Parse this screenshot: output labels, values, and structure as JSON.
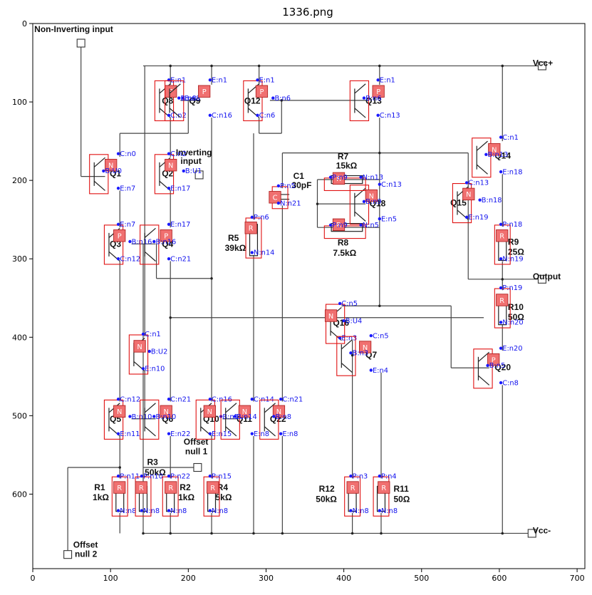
{
  "title": "1336.png",
  "axes": {
    "xlim": [
      0,
      710
    ],
    "ylim": [
      695,
      0
    ],
    "xticks": [
      "0",
      "100",
      "200",
      "300",
      "400",
      "500",
      "600",
      "700"
    ],
    "yticks": [
      "0",
      "100",
      "200",
      "300",
      "400",
      "500",
      "600"
    ]
  },
  "labels": [
    {
      "text": "Non-Inverting input",
      "x": 2,
      "y": 11
    },
    {
      "text": "Inverting",
      "x": 184,
      "y": 168
    },
    {
      "text": "input",
      "x": 190,
      "y": 179
    },
    {
      "text": "Vcc+",
      "x": 643,
      "y": 54
    },
    {
      "text": "Output",
      "x": 643,
      "y": 326
    },
    {
      "text": "Vcc-",
      "x": 643,
      "y": 650
    },
    {
      "text": "Offset",
      "x": 194,
      "y": 537
    },
    {
      "text": "null 1",
      "x": 196,
      "y": 549
    },
    {
      "text": "Offset",
      "x": 52,
      "y": 668
    },
    {
      "text": "null 2",
      "x": 54,
      "y": 680
    },
    {
      "text": "Q8",
      "x": 166,
      "y": 102
    },
    {
      "text": "Q9",
      "x": 201,
      "y": 102
    },
    {
      "text": "Q12",
      "x": 272,
      "y": 102
    },
    {
      "text": "Q13",
      "x": 428,
      "y": 102
    },
    {
      "text": "Q14",
      "x": 594,
      "y": 172
    },
    {
      "text": "Q1",
      "x": 99,
      "y": 195
    },
    {
      "text": "Q2",
      "x": 166,
      "y": 195
    },
    {
      "text": "Q18",
      "x": 433,
      "y": 233
    },
    {
      "text": "Q15",
      "x": 537,
      "y": 232
    },
    {
      "text": "Q3",
      "x": 99,
      "y": 285
    },
    {
      "text": "Q4",
      "x": 166,
      "y": 285
    },
    {
      "text": "Q16",
      "x": 386,
      "y": 385
    },
    {
      "text": "Q7",
      "x": 428,
      "y": 426
    },
    {
      "text": "Q20",
      "x": 594,
      "y": 442
    },
    {
      "text": "Q5",
      "x": 99,
      "y": 508
    },
    {
      "text": "Q6",
      "x": 166,
      "y": 508
    },
    {
      "text": "Q10",
      "x": 219,
      "y": 508
    },
    {
      "text": "Q11",
      "x": 262,
      "y": 508
    },
    {
      "text": "Q22",
      "x": 305,
      "y": 508
    },
    {
      "text": "R7",
      "x": 392,
      "y": 173
    },
    {
      "text": "15kΩ",
      "x": 390,
      "y": 185
    },
    {
      "text": "C1",
      "x": 335,
      "y": 198
    },
    {
      "text": "30pF",
      "x": 333,
      "y": 210
    },
    {
      "text": "R8",
      "x": 392,
      "y": 283
    },
    {
      "text": "7.5kΩ",
      "x": 386,
      "y": 296
    },
    {
      "text": "R5",
      "x": 251,
      "y": 277
    },
    {
      "text": "39kΩ",
      "x": 247,
      "y": 290
    },
    {
      "text": "R9",
      "x": 611,
      "y": 282
    },
    {
      "text": "25Ω",
      "x": 611,
      "y": 295
    },
    {
      "text": "R10",
      "x": 611,
      "y": 365
    },
    {
      "text": "50Ω",
      "x": 611,
      "y": 378
    },
    {
      "text": "R3",
      "x": 147,
      "y": 563
    },
    {
      "text": "50kΩ",
      "x": 144,
      "y": 576
    },
    {
      "text": "R1",
      "x": 79,
      "y": 595
    },
    {
      "text": "1kΩ",
      "x": 77,
      "y": 608
    },
    {
      "text": "R2",
      "x": 189,
      "y": 595
    },
    {
      "text": "1kΩ",
      "x": 187,
      "y": 608
    },
    {
      "text": "R4",
      "x": 237,
      "y": 595
    },
    {
      "text": "5kΩ",
      "x": 235,
      "y": 608
    },
    {
      "text": "R12",
      "x": 368,
      "y": 597
    },
    {
      "text": "50kΩ",
      "x": 364,
      "y": 610
    },
    {
      "text": "R11",
      "x": 464,
      "y": 597
    },
    {
      "text": "50Ω",
      "x": 464,
      "y": 610
    }
  ],
  "detections": [
    {
      "badge": "P",
      "bx": 170,
      "by": 79,
      "annot": [
        {
          "t": "E:n1",
          "x": 177,
          "y": 75
        },
        {
          "t": "B:n8",
          "x": 195,
          "y": 98
        },
        {
          "t": "C:n2",
          "x": 177,
          "y": 120
        }
      ]
    },
    {
      "badge": "P",
      "bx": 213,
      "by": 79,
      "annot": [
        {
          "t": "E:n1",
          "x": 230,
          "y": 75
        },
        {
          "t": "B:n8",
          "x": 190,
          "y": 98
        },
        {
          "t": "C:n16",
          "x": 230,
          "y": 120
        }
      ]
    },
    {
      "badge": "P",
      "bx": 287,
      "by": 79,
      "annot": [
        {
          "t": "E:n1",
          "x": 291,
          "y": 75
        },
        {
          "t": "B:n6",
          "x": 311,
          "y": 98
        },
        {
          "t": "C:n6",
          "x": 291,
          "y": 120
        }
      ]
    },
    {
      "badge": "P",
      "bx": 437,
      "by": 79,
      "annot": [
        {
          "t": "E:n1",
          "x": 446,
          "y": 75
        },
        {
          "t": "B:n6",
          "x": 428,
          "y": 98
        },
        {
          "t": "C:n13",
          "x": 446,
          "y": 120
        }
      ]
    },
    {
      "badge": "N",
      "bx": 586,
      "by": 153,
      "annot": [
        {
          "t": "C:n1",
          "x": 604,
          "y": 148
        },
        {
          "t": "B:n13",
          "x": 585,
          "y": 170
        },
        {
          "t": "E:n18",
          "x": 604,
          "y": 192
        }
      ]
    },
    {
      "badge": "N",
      "bx": 93,
      "by": 173,
      "annot": [
        {
          "t": "C:n0",
          "x": 112,
          "y": 169
        },
        {
          "t": "B:U0",
          "x": 93,
          "y": 191
        },
        {
          "t": "E:n7",
          "x": 112,
          "y": 213
        }
      ]
    },
    {
      "badge": "N",
      "bx": 170,
      "by": 173,
      "annot": [
        {
          "t": "C:n2",
          "x": 177,
          "y": 169
        },
        {
          "t": "B:U1",
          "x": 196,
          "y": 191
        },
        {
          "t": "E:n17",
          "x": 177,
          "y": 213
        }
      ]
    },
    {
      "badge": "N",
      "bx": 428,
      "by": 212,
      "annot": [
        {
          "t": "C:n13",
          "x": 448,
          "y": 208
        },
        {
          "t": "B:n9",
          "x": 428,
          "y": 230
        },
        {
          "t": "E:n5",
          "x": 448,
          "y": 252
        }
      ]
    },
    {
      "badge": "N",
      "bx": 553,
      "by": 210,
      "annot": [
        {
          "t": "C:n13",
          "x": 560,
          "y": 206
        },
        {
          "t": "B:n18",
          "x": 577,
          "y": 228
        },
        {
          "t": "E:n19",
          "x": 560,
          "y": 250
        }
      ]
    },
    {
      "badge": "P",
      "bx": 104,
      "by": 263,
      "annot": [
        {
          "t": "E:n7",
          "x": 112,
          "y": 259
        },
        {
          "t": "B:n16",
          "x": 127,
          "y": 281
        },
        {
          "t": "C:n12",
          "x": 112,
          "y": 303
        }
      ]
    },
    {
      "badge": "P",
      "bx": 164,
      "by": 263,
      "annot": [
        {
          "t": "E:n17",
          "x": 177,
          "y": 259
        },
        {
          "t": "B:n16",
          "x": 158,
          "y": 281
        },
        {
          "t": "C:n21",
          "x": 177,
          "y": 303
        }
      ]
    },
    {
      "badge": "N",
      "bx": 376,
      "by": 365,
      "annot": [
        {
          "t": "C:n5",
          "x": 397,
          "y": 360
        },
        {
          "t": "B:U4",
          "x": 402,
          "y": 382
        },
        {
          "t": "E:n3",
          "x": 397,
          "y": 404
        }
      ]
    },
    {
      "badge": "N",
      "bx": 420,
      "by": 405,
      "annot": [
        {
          "t": "C:n5",
          "x": 437,
          "y": 401
        },
        {
          "t": "B:n3",
          "x": 411,
          "y": 423
        },
        {
          "t": "E:n4",
          "x": 437,
          "y": 445
        }
      ]
    },
    {
      "badge": "P",
      "bx": 585,
      "by": 421,
      "annot": [
        {
          "t": "E:n20",
          "x": 604,
          "y": 417
        },
        {
          "t": "B:n5",
          "x": 587,
          "y": 439
        },
        {
          "t": "C:n8",
          "x": 604,
          "y": 461
        }
      ]
    },
    {
      "badge": "N",
      "bx": 130,
      "by": 404,
      "annot": [
        {
          "t": "C:n1",
          "x": 144,
          "y": 399
        },
        {
          "t": "B:U2",
          "x": 152,
          "y": 421
        },
        {
          "t": "E:n10",
          "x": 144,
          "y": 443
        }
      ]
    },
    {
      "badge": "N",
      "bx": 104,
      "by": 487,
      "annot": [
        {
          "t": "C:n12",
          "x": 112,
          "y": 482
        },
        {
          "t": "B:n10",
          "x": 127,
          "y": 504
        },
        {
          "t": "E:n11",
          "x": 112,
          "y": 526
        }
      ]
    },
    {
      "badge": "N",
      "bx": 164,
      "by": 487,
      "annot": [
        {
          "t": "C:n21",
          "x": 177,
          "y": 482
        },
        {
          "t": "B:n10",
          "x": 158,
          "y": 504
        },
        {
          "t": "E:n22",
          "x": 177,
          "y": 526
        }
      ]
    },
    {
      "badge": "N",
      "bx": 220,
      "by": 487,
      "annot": [
        {
          "t": "C:n16",
          "x": 230,
          "y": 482
        },
        {
          "t": "B:n14",
          "x": 244,
          "y": 504
        },
        {
          "t": "E:n15",
          "x": 230,
          "y": 526
        }
      ]
    },
    {
      "badge": "N",
      "bx": 265,
      "by": 487,
      "annot": [
        {
          "t": "C:n14",
          "x": 284,
          "y": 482
        },
        {
          "t": "B:n14",
          "x": 262,
          "y": 504
        },
        {
          "t": "E:n8",
          "x": 284,
          "y": 526
        }
      ]
    },
    {
      "badge": "N",
      "bx": 309,
      "by": 487,
      "annot": [
        {
          "t": "C:n21",
          "x": 321,
          "y": 482
        },
        {
          "t": "B:n8",
          "x": 312,
          "y": 504
        },
        {
          "t": "E:n8",
          "x": 321,
          "y": 526
        }
      ]
    },
    {
      "badge": "C",
      "bx": 304,
      "by": 214,
      "annot": [
        {
          "t": "P:n5",
          "x": 318,
          "y": 210
        },
        {
          "t": "N:n21",
          "x": 318,
          "y": 232
        }
      ]
    },
    {
      "badge": "R",
      "bx": 386,
      "by": 190,
      "annot": [
        {
          "t": "P:n9",
          "x": 385,
          "y": 199
        },
        {
          "t": "N:n13",
          "x": 424,
          "y": 199
        }
      ]
    },
    {
      "badge": "R",
      "bx": 386,
      "by": 249,
      "annot": [
        {
          "t": "P:n9",
          "x": 385,
          "y": 260
        },
        {
          "t": "N:n5",
          "x": 424,
          "y": 260
        }
      ]
    },
    {
      "badge": "R",
      "bx": 273,
      "by": 253,
      "annot": [
        {
          "t": "P:n6",
          "x": 284,
          "y": 250
        },
        {
          "t": "N:n14",
          "x": 284,
          "y": 295
        }
      ]
    },
    {
      "badge": "R",
      "bx": 596,
      "by": 263,
      "annot": [
        {
          "t": "P:n18",
          "x": 604,
          "y": 259
        },
        {
          "t": "N:n19",
          "x": 604,
          "y": 303
        }
      ]
    },
    {
      "badge": "R",
      "bx": 596,
      "by": 345,
      "annot": [
        {
          "t": "P:n19",
          "x": 604,
          "y": 340
        },
        {
          "t": "N:n20",
          "x": 604,
          "y": 384
        }
      ]
    },
    {
      "badge": "R",
      "bx": 104,
      "by": 584,
      "annot": [
        {
          "t": "P:n11",
          "x": 112,
          "y": 580
        },
        {
          "t": "N:n8",
          "x": 112,
          "y": 624
        }
      ]
    },
    {
      "badge": "R",
      "bx": 132,
      "by": 584,
      "annot": [
        {
          "t": "P:n10",
          "x": 142,
          "y": 580
        },
        {
          "t": "N:n8",
          "x": 142,
          "y": 624
        }
      ]
    },
    {
      "badge": "R",
      "bx": 170,
      "by": 584,
      "annot": [
        {
          "t": "P:n22",
          "x": 177,
          "y": 580
        },
        {
          "t": "N:n8",
          "x": 177,
          "y": 624
        }
      ]
    },
    {
      "badge": "R",
      "bx": 224,
      "by": 584,
      "annot": [
        {
          "t": "P:n15",
          "x": 230,
          "y": 580
        },
        {
          "t": "N:n8",
          "x": 230,
          "y": 624
        }
      ]
    },
    {
      "badge": "R",
      "bx": 404,
      "by": 584,
      "annot": [
        {
          "t": "P:n3",
          "x": 411,
          "y": 580
        },
        {
          "t": "N:n8",
          "x": 411,
          "y": 624
        }
      ]
    },
    {
      "badge": "R",
      "bx": 444,
      "by": 584,
      "annot": [
        {
          "t": "P:n4",
          "x": 448,
          "y": 580
        },
        {
          "t": "N:n8",
          "x": 448,
          "y": 624
        }
      ]
    }
  ]
}
